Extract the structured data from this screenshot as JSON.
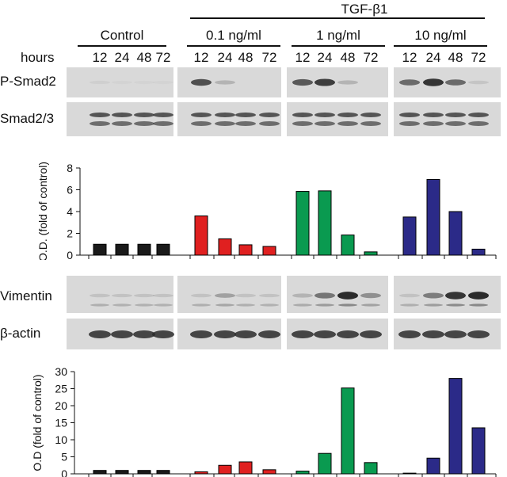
{
  "header": {
    "treatment": "TGF-β1",
    "groups": [
      "Control",
      "0.1 ng/ml",
      "1 ng/ml",
      "10 ng/ml"
    ],
    "hours_label": "hours",
    "hours": [
      "12",
      "24",
      "48",
      "72"
    ]
  },
  "blots": {
    "psmad2": "P-Smad2",
    "smad23": "Smad2/3",
    "vimentin": "Vimentin",
    "actin": "β-actin"
  },
  "chart_data": [
    {
      "type": "bar",
      "ylabel": "O.D. (fold of control)",
      "ylim": [
        0,
        8
      ],
      "yticks": [
        0,
        2,
        4,
        6,
        8
      ],
      "categories": [
        "12",
        "24",
        "48",
        "72"
      ],
      "grid": false,
      "series": [
        {
          "group": "Control",
          "color": "#1a1a1a",
          "values": [
            1.0,
            1.0,
            1.0,
            1.0
          ]
        },
        {
          "group": "0.1 ng/ml",
          "color": "#e02020",
          "values": [
            3.6,
            1.5,
            0.95,
            0.8
          ]
        },
        {
          "group": "1 ng/ml",
          "color": "#0a9a50",
          "values": [
            5.85,
            5.9,
            1.85,
            0.3
          ]
        },
        {
          "group": "10 ng/ml",
          "color": "#2b2a88",
          "values": [
            3.5,
            6.95,
            4.0,
            0.55
          ]
        }
      ]
    },
    {
      "type": "bar",
      "ylabel": "O.D (fold of control)",
      "ylim": [
        0,
        30
      ],
      "yticks": [
        0,
        5,
        10,
        15,
        20,
        25,
        30
      ],
      "categories": [
        "12",
        "24",
        "48",
        "72"
      ],
      "grid": false,
      "series": [
        {
          "group": "Control",
          "color": "#1a1a1a",
          "values": [
            1.0,
            1.0,
            1.0,
            1.0
          ]
        },
        {
          "group": "0.1 ng/ml",
          "color": "#e02020",
          "values": [
            0.6,
            2.5,
            3.5,
            1.2
          ]
        },
        {
          "group": "1 ng/ml",
          "color": "#0a9a50",
          "values": [
            0.8,
            6.0,
            25.2,
            3.3
          ]
        },
        {
          "group": "10 ng/ml",
          "color": "#2b2a88",
          "values": [
            0.2,
            4.6,
            28.0,
            13.5
          ]
        }
      ]
    }
  ]
}
